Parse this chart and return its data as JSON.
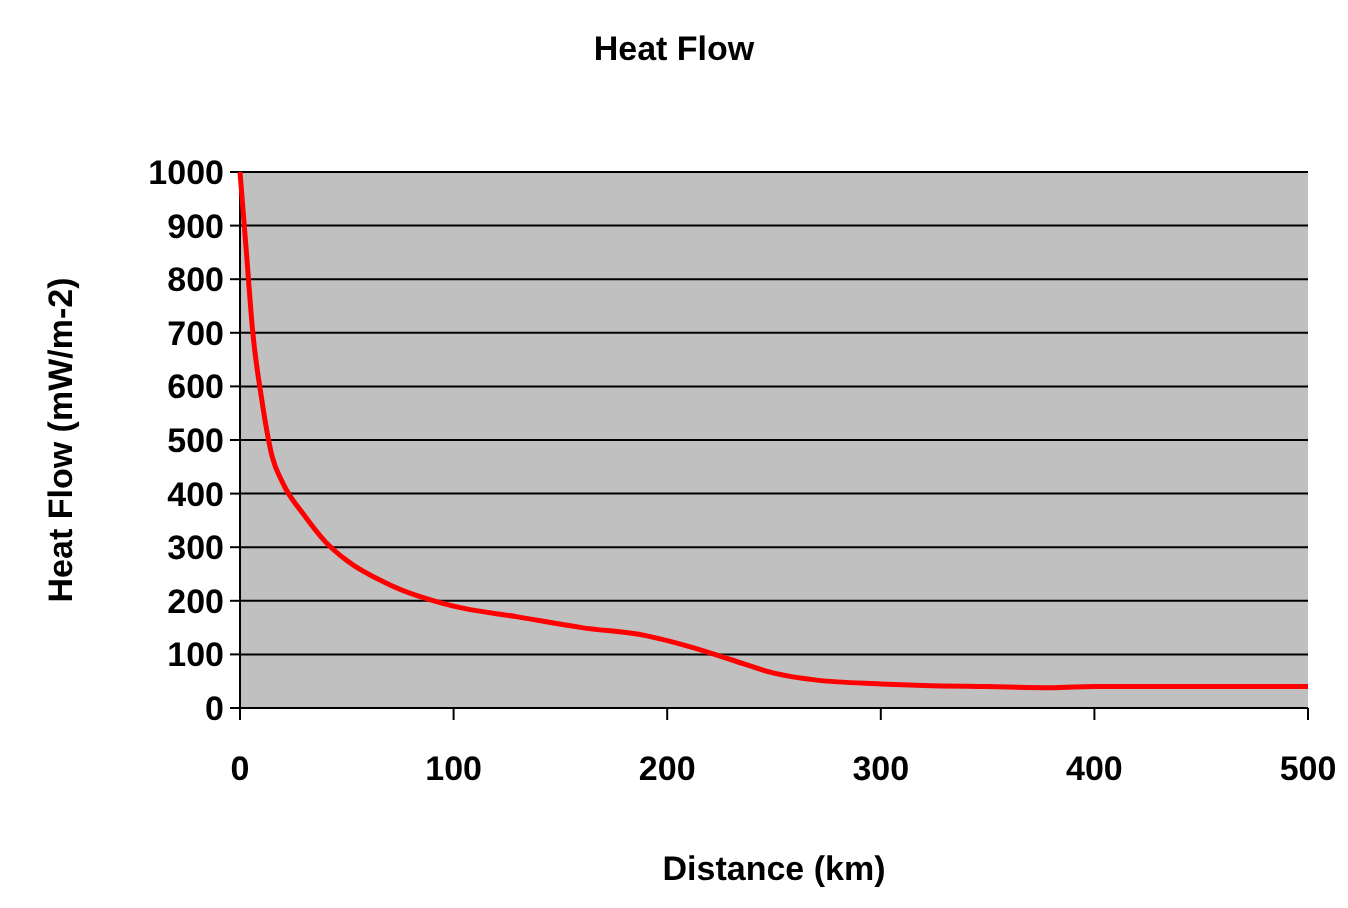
{
  "chart_data": {
    "type": "line",
    "title": "Heat Flow",
    "xlabel": "Distance (km)",
    "ylabel": "Heat Flow (mW/m-2)",
    "xlim": [
      0,
      500
    ],
    "xticks": [
      0,
      100,
      200,
      300,
      400,
      500
    ],
    "ylim": [
      0,
      1000
    ],
    "yticks": [
      0,
      100,
      200,
      300,
      400,
      500,
      600,
      700,
      800,
      900,
      1000
    ],
    "grid": "y",
    "series": [
      {
        "color": "#ff0000",
        "x": [
          0,
          3,
          6,
          10,
          15,
          20,
          30,
          40,
          50,
          70,
          100,
          130,
          160,
          190,
          210,
          230,
          250,
          270,
          300,
          320,
          350,
          380,
          400,
          450,
          500
        ],
        "values": [
          1000,
          850,
          700,
          580,
          470,
          420,
          360,
          310,
          275,
          230,
          190,
          170,
          150,
          135,
          115,
          90,
          65,
          52,
          45,
          42,
          40,
          38,
          40,
          40,
          40
        ]
      }
    ]
  }
}
